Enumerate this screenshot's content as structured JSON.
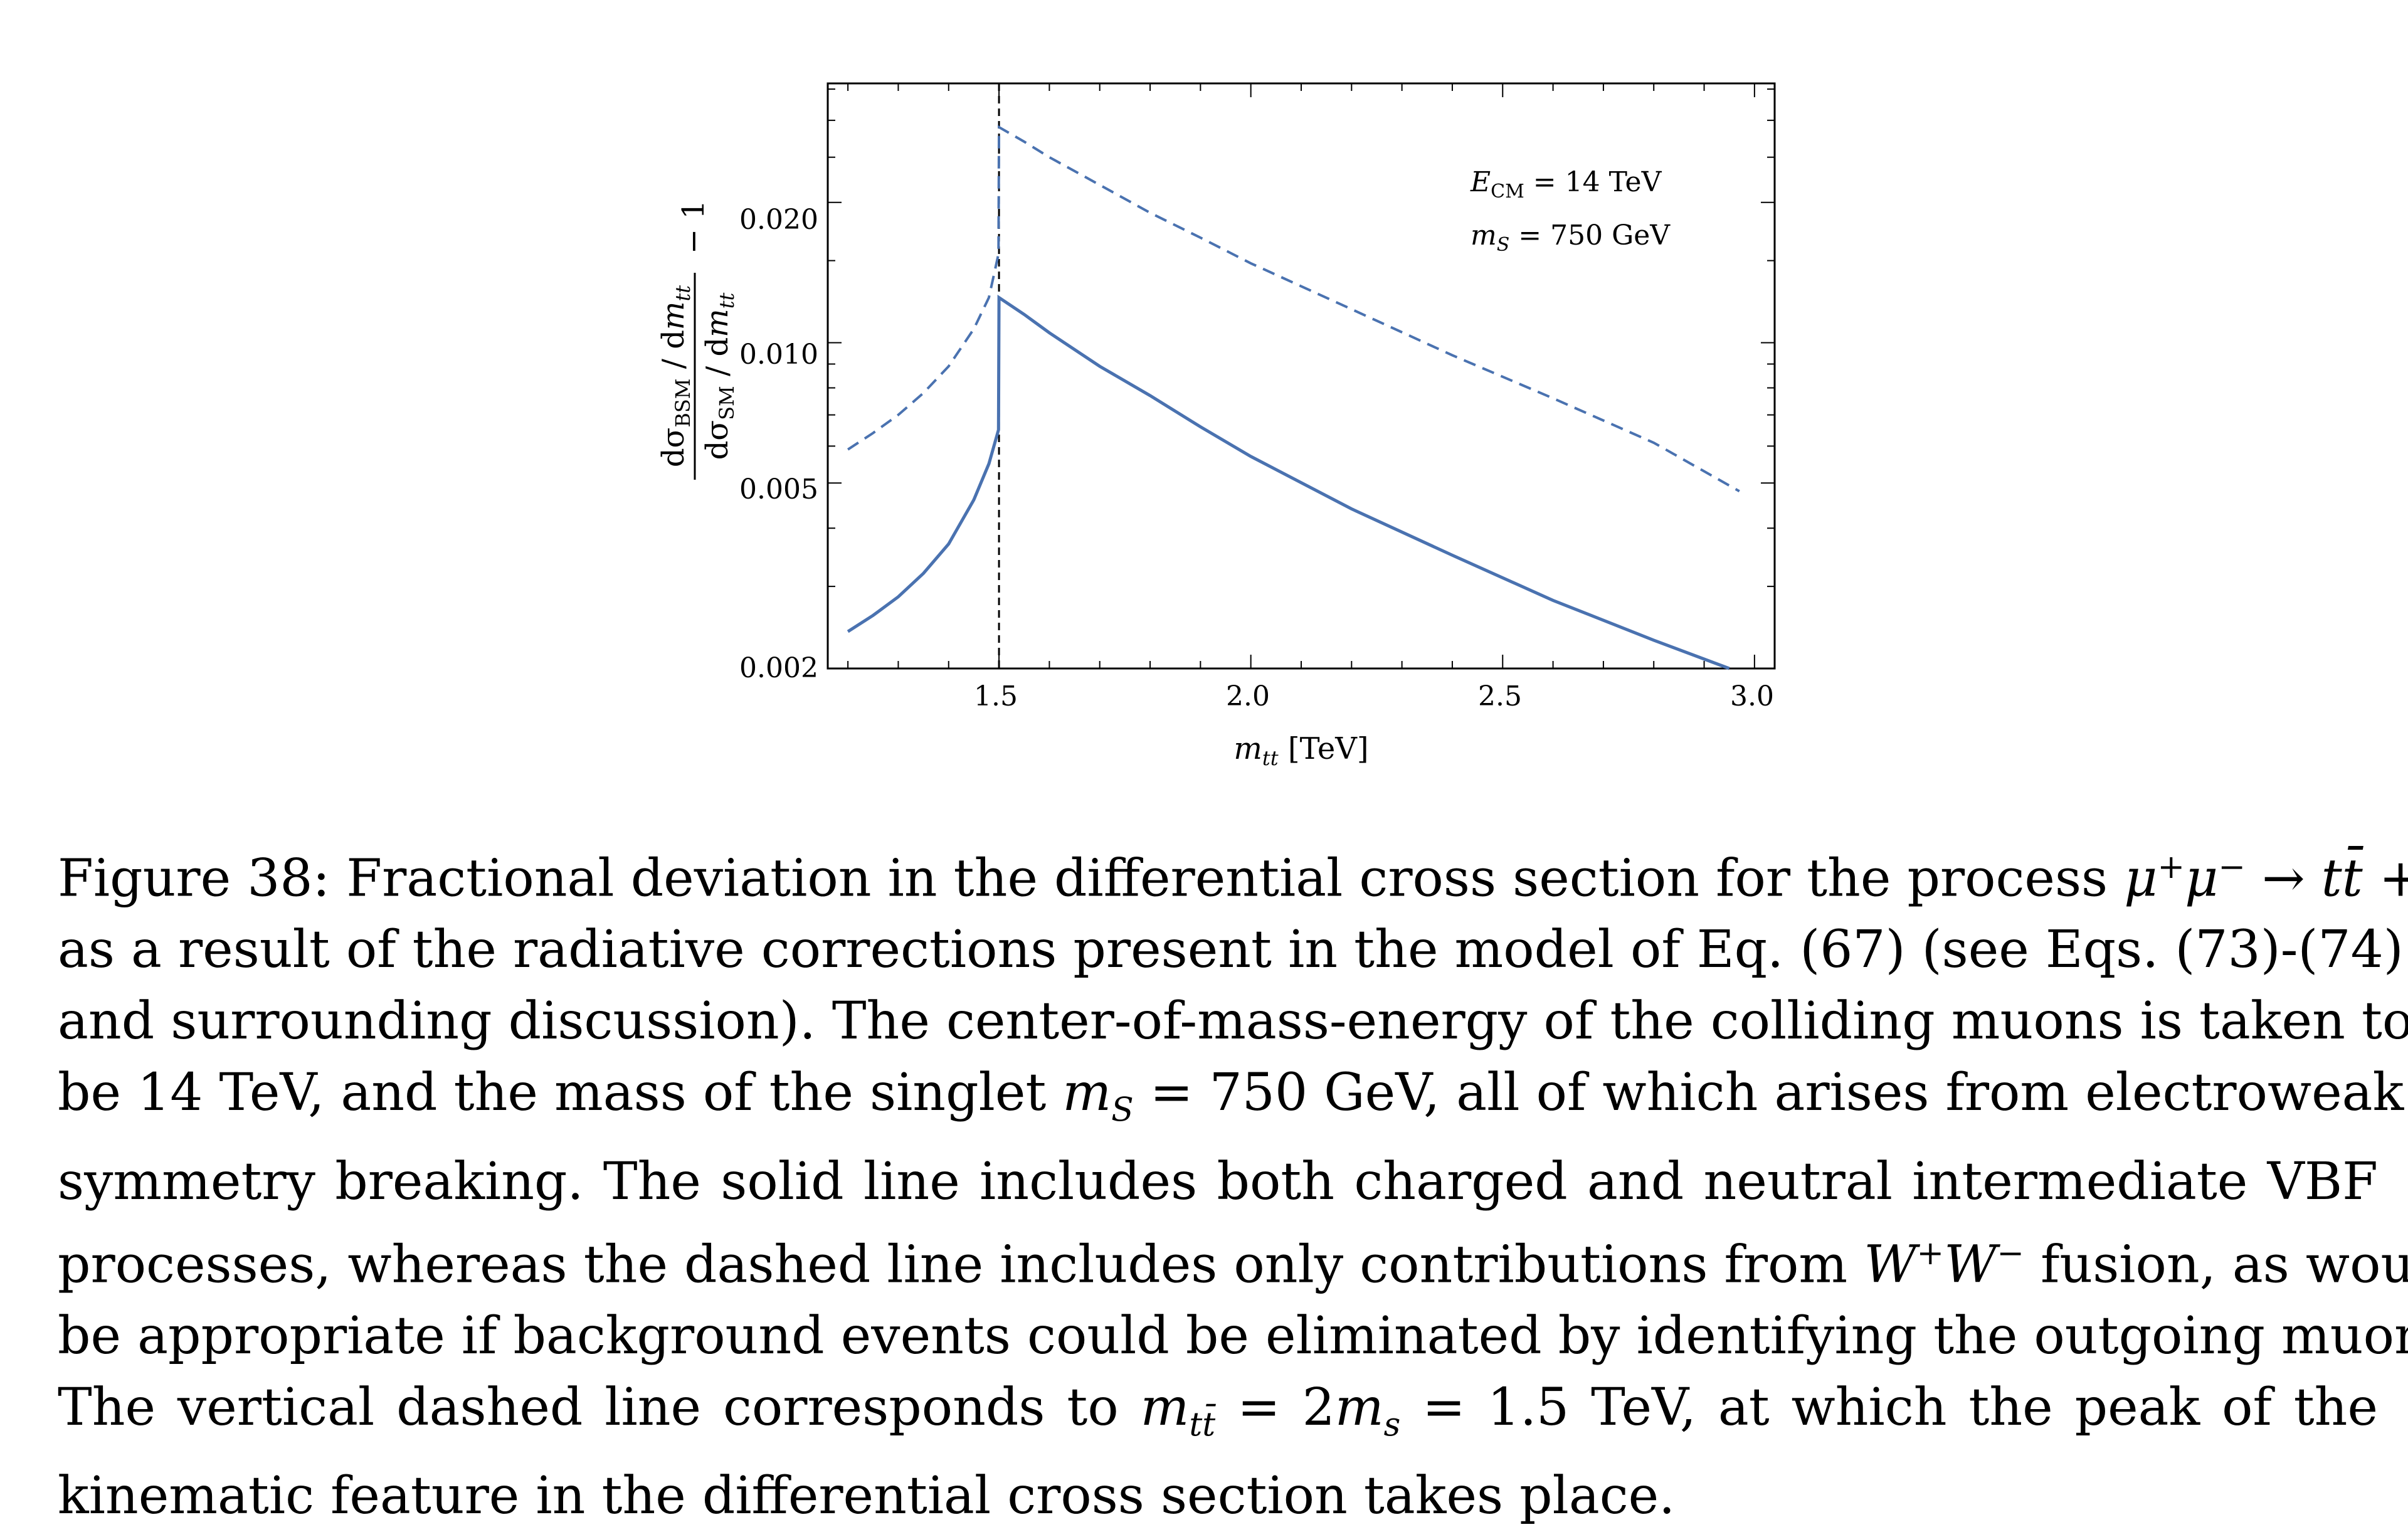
{
  "chart_data": {
    "type": "line",
    "xlabel": "m_tt [TeV]",
    "ylabel": "dσ_BSM / dm_tt  /  dσ_SM / dm_tt  − 1",
    "x_ticks": [
      "1.5",
      "2.0",
      "2.5",
      "3.0"
    ],
    "y_ticks": [
      "0.002",
      "0.005",
      "0.010",
      "0.020"
    ],
    "y_scale": "log",
    "xlim": [
      1.16,
      3.04
    ],
    "ylim": [
      0.002,
      0.036
    ],
    "grid": false,
    "annotations": {
      "ecm": "E_CM = 14 TeV",
      "ms": "m_S = 750 GeV"
    },
    "vline_x": 1.5,
    "series": [
      {
        "style": "solid",
        "x": [
          1.2,
          1.25,
          1.3,
          1.35,
          1.4,
          1.45,
          1.48,
          1.499,
          1.5,
          1.55,
          1.6,
          1.7,
          1.8,
          1.9,
          2.0,
          2.2,
          2.4,
          2.6,
          2.8,
          2.95
        ],
        "y": [
          0.0024,
          0.0026,
          0.00285,
          0.0032,
          0.0037,
          0.0046,
          0.0055,
          0.0065,
          0.0125,
          0.0115,
          0.0105,
          0.0089,
          0.0077,
          0.0066,
          0.0057,
          0.0044,
          0.0035,
          0.0028,
          0.0023,
          0.002
        ]
      },
      {
        "style": "dashed",
        "x": [
          1.2,
          1.25,
          1.3,
          1.35,
          1.4,
          1.45,
          1.48,
          1.499,
          1.5,
          1.55,
          1.6,
          1.7,
          1.8,
          1.9,
          2.0,
          2.2,
          2.4,
          2.6,
          2.8,
          2.97
        ],
        "y": [
          0.0059,
          0.0064,
          0.007,
          0.0078,
          0.0089,
          0.0107,
          0.0125,
          0.0155,
          0.029,
          0.027,
          0.025,
          0.0218,
          0.019,
          0.0168,
          0.0148,
          0.0118,
          0.0094,
          0.0076,
          0.0061,
          0.0048
        ]
      }
    ]
  },
  "caption": {
    "lines": [
      "Figure 38: Fractional deviation in the differential cross section for the process μ⁺μ⁻ → tt̄ + X",
      "as a result of the radiative corrections present in the model of Eq. (67) (see Eqs. (73)-(74)",
      "and surrounding discussion). The center-of-mass-energy of the colliding muons is taken to",
      "be 14 TeV, and the mass of the singlet m_S = 750 GeV, all of which arises from electroweak",
      "symmetry breaking. The solid line includes both charged and neutral intermediate VBF",
      "processes, whereas the dashed line includes only contributions from W⁺W⁻ fusion, as would",
      "be appropriate if background events could be eliminated by identifying the outgoing muons.",
      "The vertical dashed line corresponds to m_tt̄ = 2m_s = 1.5 TeV, at which the peak of the",
      "kinematic feature in the differential cross section takes place."
    ]
  },
  "colors": {
    "series": "#4a72b0",
    "axis": "#000000"
  }
}
